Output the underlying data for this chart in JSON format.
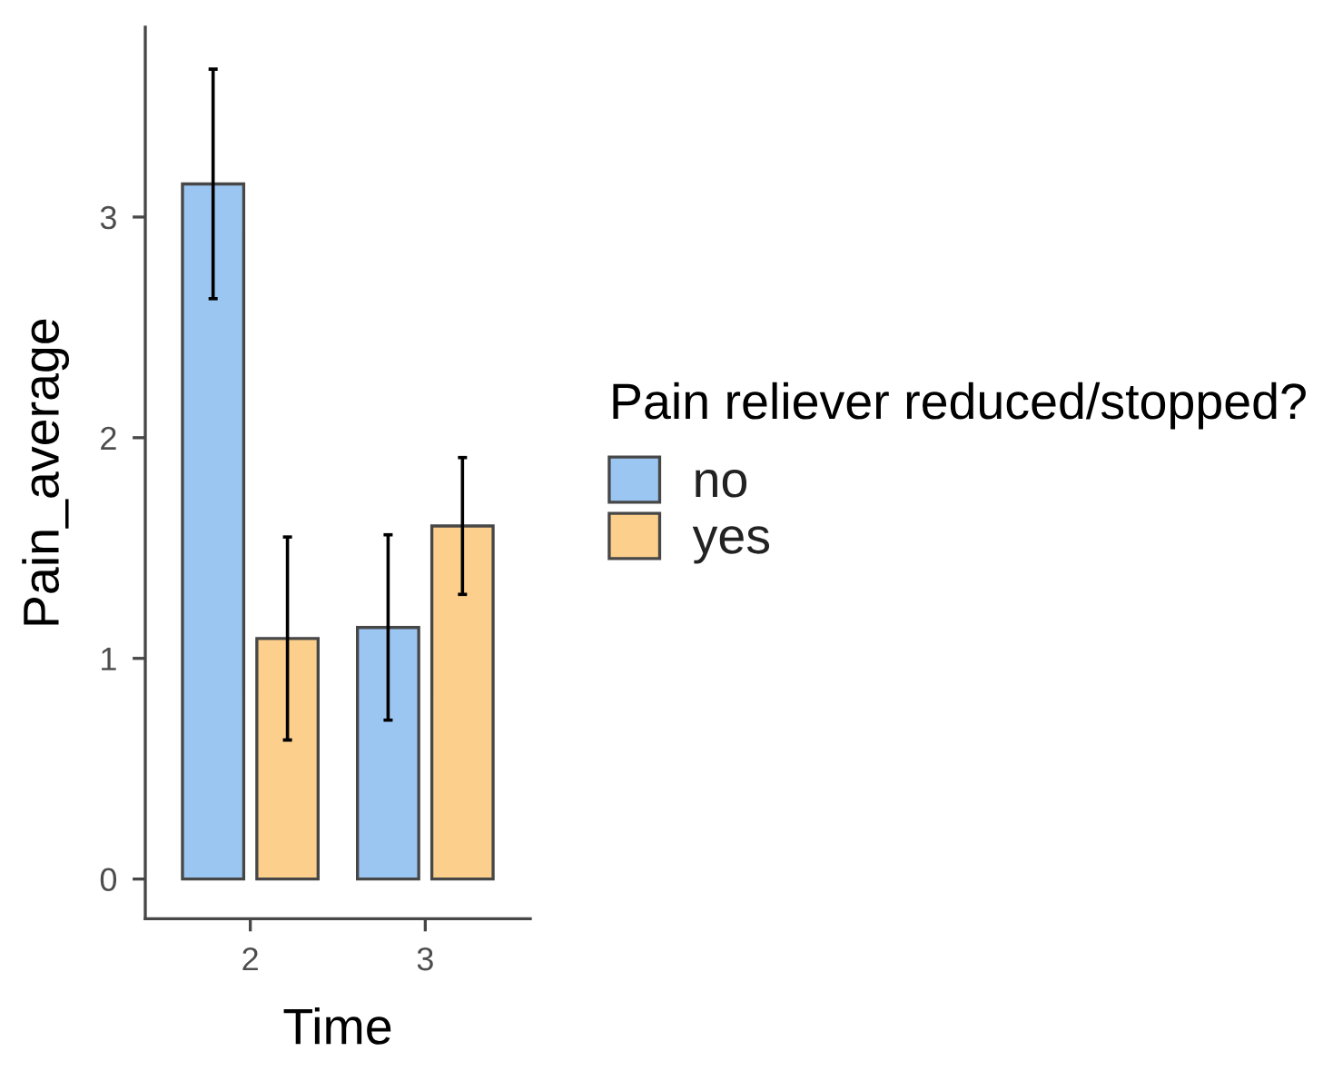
{
  "chart_data": {
    "type": "bar",
    "xlabel": "Time",
    "ylabel": "Pain_average",
    "legend_title": "Pain reliever reduced/stopped?",
    "categories": [
      "2",
      "3"
    ],
    "series": [
      {
        "name": "no",
        "color": "#9cc6f2",
        "values": [
          3.15,
          1.14
        ],
        "errors": [
          0.52,
          0.42
        ]
      },
      {
        "name": "yes",
        "color": "#fcd08c",
        "values": [
          1.09,
          1.6
        ],
        "errors": [
          0.46,
          0.31
        ]
      }
    ],
    "ylim": [
      -0.18,
      3.86
    ],
    "yticks": [
      0,
      1,
      2,
      3
    ],
    "grid": false,
    "legend": "right"
  }
}
